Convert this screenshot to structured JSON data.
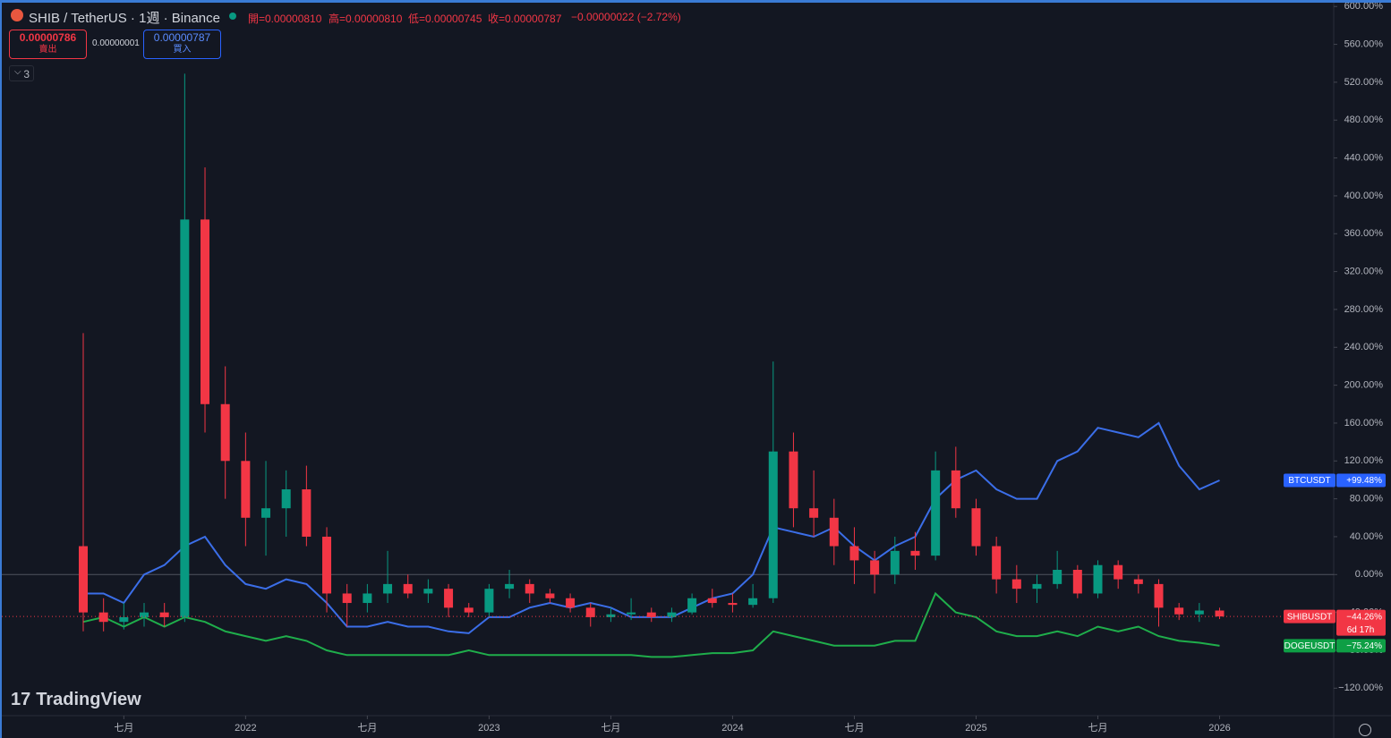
{
  "chart_data": {
    "type": "candlestick",
    "title": "SHIB / TetherUS · 1週 · Binance",
    "ohlc_labels": [
      "開=0.00000810",
      "高=0.00000810",
      "低=0.00000745",
      "收=0.00000787"
    ],
    "change": "−0.00000022 (−2.72%)",
    "sell_price": "0.00000786",
    "sell_label": "賣出",
    "spread": "0.00000001",
    "buy_price": "0.00000787",
    "buy_label": "買入",
    "indicator_count": "3",
    "watermark": "TradingView",
    "categories": [
      null,
      null,
      "七月",
      null,
      null,
      null,
      null,
      null,
      "2022",
      null,
      null,
      null,
      null,
      null,
      "七月",
      null,
      null,
      null,
      null,
      null,
      "2023",
      null,
      null,
      null,
      null,
      null,
      "七月",
      null,
      null,
      null,
      null,
      null,
      "2024",
      null,
      null,
      null,
      null,
      null,
      "七月",
      null,
      null,
      null,
      null,
      null,
      "2025",
      null,
      null,
      null,
      null,
      null,
      "七月",
      null,
      null,
      null,
      null,
      null,
      "2026"
    ],
    "candles": {
      "name": "SHIBUSDT",
      "up_color": "#089981",
      "down_color": "#f23645",
      "open": [
        30,
        -40,
        -50,
        -45,
        -40,
        -45,
        375,
        180,
        120,
        60,
        70,
        90,
        40,
        -20,
        -30,
        -20,
        -10,
        -20,
        -15,
        -35,
        -40,
        -15,
        -10,
        -20,
        -25,
        -35,
        -45,
        -42,
        -40,
        -45,
        -40,
        -25,
        -30,
        -32,
        -25,
        130,
        70,
        60,
        30,
        15,
        0,
        25,
        20,
        110,
        70,
        30,
        -5,
        -15,
        -10,
        5,
        -20,
        10,
        -5,
        -10,
        -35,
        -42,
        -38
      ],
      "high": [
        255,
        -25,
        -30,
        -30,
        -30,
        529,
        430,
        220,
        150,
        120,
        110,
        115,
        50,
        -10,
        -10,
        25,
        0,
        -5,
        -10,
        -30,
        -10,
        5,
        -5,
        -15,
        -20,
        -30,
        -35,
        -25,
        -35,
        -35,
        -20,
        -15,
        -20,
        -10,
        225,
        150,
        110,
        80,
        50,
        25,
        40,
        45,
        130,
        135,
        80,
        40,
        10,
        0,
        25,
        10,
        15,
        15,
        0,
        -5,
        -30,
        -30,
        -35
      ],
      "low": [
        -60,
        -60,
        -58,
        -55,
        -55,
        -50,
        150,
        80,
        30,
        20,
        40,
        30,
        -40,
        -55,
        -40,
        -30,
        -25,
        -30,
        -45,
        -45,
        -45,
        -25,
        -30,
        -30,
        -40,
        -55,
        -50,
        -48,
        -50,
        -50,
        -42,
        -35,
        -40,
        -35,
        -30,
        50,
        40,
        10,
        -10,
        -20,
        -10,
        5,
        15,
        60,
        20,
        -20,
        -30,
        -30,
        -15,
        -25,
        -25,
        -15,
        -20,
        -55,
        -48,
        -50,
        -47
      ],
      "close": [
        -40,
        -50,
        -45,
        -40,
        -45,
        375,
        180,
        120,
        60,
        70,
        90,
        40,
        -20,
        -30,
        -20,
        -10,
        -20,
        -15,
        -35,
        -40,
        -15,
        -10,
        -20,
        -25,
        -35,
        -45,
        -42,
        -40,
        -45,
        -40,
        -25,
        -30,
        -32,
        -25,
        130,
        70,
        60,
        30,
        15,
        0,
        25,
        20,
        110,
        70,
        30,
        -5,
        -15,
        -10,
        5,
        -20,
        10,
        -5,
        -10,
        -35,
        -42,
        -38,
        -44.26
      ],
      "last_value_label": "−44.26%",
      "countdown": "6d 17h"
    },
    "series": [
      {
        "name": "BTCUSDT",
        "type": "line",
        "color": "#3b6ee8",
        "label_color": "#2962ff",
        "values": [
          -20,
          -20,
          -30,
          0,
          10,
          30,
          40,
          10,
          -10,
          -15,
          -5,
          -10,
          -30,
          -55,
          -55,
          -50,
          -55,
          -55,
          -60,
          -62,
          -45,
          -45,
          -35,
          -30,
          -35,
          -30,
          -35,
          -45,
          -45,
          -45,
          -35,
          -25,
          -20,
          0,
          50,
          45,
          40,
          50,
          30,
          15,
          30,
          40,
          80,
          100,
          110,
          90,
          80,
          80,
          120,
          130,
          155,
          150,
          145,
          160,
          115,
          90,
          99.48
        ],
        "last_value_label": "+99.48%"
      },
      {
        "name": "DOGEUSDT",
        "type": "line",
        "color": "#1fae4b",
        "label_color": "#0e9f45",
        "values": [
          -50,
          -45,
          -55,
          -45,
          -55,
          -45,
          -50,
          -60,
          -65,
          -70,
          -65,
          -70,
          -80,
          -85,
          -85,
          -85,
          -85,
          -85,
          -85,
          -80,
          -85,
          -85,
          -85,
          -85,
          -85,
          -85,
          -85,
          -85,
          -87,
          -87,
          -85,
          -83,
          -83,
          -80,
          -60,
          -65,
          -70,
          -75,
          -75,
          -75,
          -70,
          -70,
          -20,
          -40,
          -45,
          -60,
          -65,
          -65,
          -60,
          -65,
          -55,
          -60,
          -55,
          -65,
          -70,
          -72,
          -75.24
        ],
        "last_value_label": "−75.24%"
      }
    ],
    "ylim": [
      -149,
      604
    ],
    "yticks": [
      {
        "value": 600,
        "label": "600.00%"
      },
      {
        "value": 560,
        "label": "560.00%"
      },
      {
        "value": 520,
        "label": "520.00%"
      },
      {
        "value": 480,
        "label": "480.00%"
      },
      {
        "value": 440,
        "label": "440.00%"
      },
      {
        "value": 400,
        "label": "400.00%"
      },
      {
        "value": 360,
        "label": "360.00%"
      },
      {
        "value": 320,
        "label": "320.00%"
      },
      {
        "value": 280,
        "label": "280.00%"
      },
      {
        "value": 240,
        "label": "240.00%"
      },
      {
        "value": 200,
        "label": "200.00%"
      },
      {
        "value": 160,
        "label": "160.00%"
      },
      {
        "value": 120,
        "label": "120.00%"
      },
      {
        "value": 80,
        "label": "80.00%"
      },
      {
        "value": 40,
        "label": "40.00%"
      },
      {
        "value": 0,
        "label": "0.00%"
      },
      {
        "value": -40,
        "label": "−40.00%"
      },
      {
        "value": -80,
        "label": "−80.00%"
      },
      {
        "value": -120,
        "label": "−120.00%"
      }
    ],
    "zero_line": true,
    "price_line": true
  }
}
